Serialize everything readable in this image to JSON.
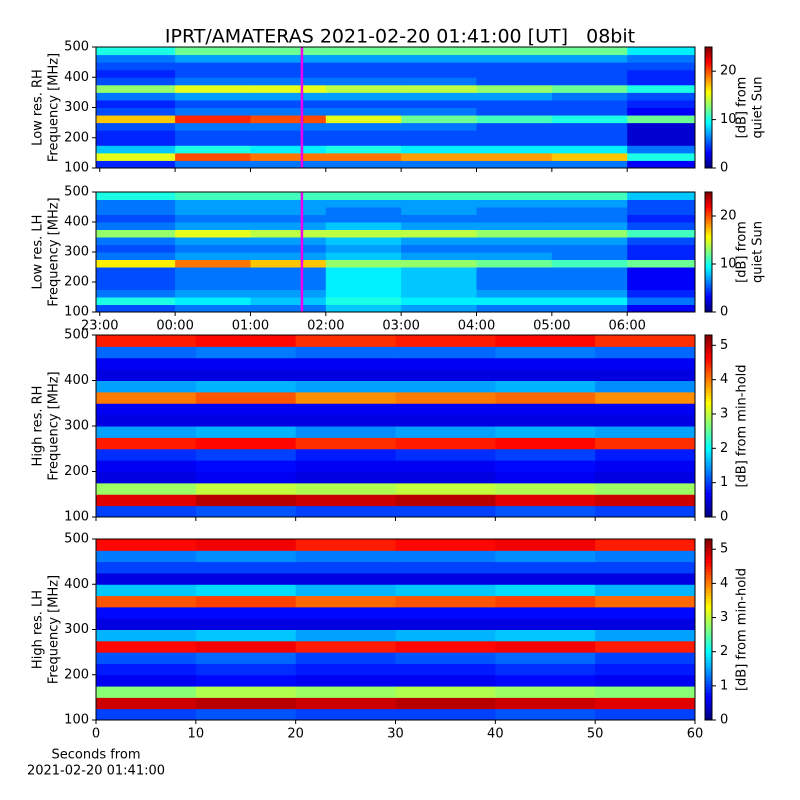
{
  "chart_data": [
    {
      "type": "heatmap",
      "title": "IPRT/AMATERAS 2021-02-20 01:41:00 [UT]   08bit",
      "ylabel": [
        "Low res. RH",
        "Frequency [MHz]"
      ],
      "colorbar_label": [
        "[dB] from",
        "quiet Sun"
      ],
      "colormap": "jet",
      "xlim": [
        22.95,
        30.9
      ],
      "ylim": [
        100,
        500
      ],
      "yticks": [
        100,
        200,
        300,
        400,
        500
      ],
      "xticks": [
        23,
        24,
        25,
        26,
        27,
        28,
        29,
        30
      ],
      "clim": [
        0,
        25
      ],
      "cticks": [
        0,
        10,
        20
      ],
      "cursor": {
        "x": 25.683,
        "color": "#ee00ee"
      },
      "x_bins": [
        22.95,
        24,
        25,
        26,
        27,
        28,
        29,
        30,
        30.9
      ],
      "y_bins": [
        100,
        125,
        150,
        175,
        200,
        225,
        250,
        275,
        300,
        325,
        350,
        375,
        400,
        425,
        450,
        475,
        500
      ],
      "z": [
        [
          4,
          6,
          6,
          6,
          6,
          6,
          6,
          3
        ],
        [
          15,
          20,
          19,
          19,
          18,
          18,
          17,
          10
        ],
        [
          8,
          10,
          9,
          10,
          9,
          9,
          9,
          6
        ],
        [
          4,
          5,
          5,
          5,
          5,
          5,
          5,
          2
        ],
        [
          4,
          5,
          5,
          5,
          5,
          5,
          5,
          2
        ],
        [
          5,
          6,
          6,
          6,
          6,
          5,
          5,
          2
        ],
        [
          17,
          21,
          20,
          15,
          12,
          11,
          10,
          12
        ],
        [
          5,
          6,
          6,
          6,
          6,
          5,
          5,
          3
        ],
        [
          4,
          5,
          5,
          5,
          5,
          5,
          5,
          4
        ],
        [
          6,
          7,
          7,
          7,
          7,
          7,
          6,
          5
        ],
        [
          13,
          15,
          15,
          14,
          14,
          13,
          12,
          10
        ],
        [
          5,
          6,
          6,
          6,
          6,
          5,
          5,
          4
        ],
        [
          4,
          5,
          5,
          5,
          5,
          5,
          5,
          4
        ],
        [
          5,
          5,
          5,
          5,
          5,
          5,
          5,
          5
        ],
        [
          6,
          7,
          7,
          7,
          7,
          7,
          7,
          6
        ],
        [
          10,
          12,
          12,
          12,
          12,
          12,
          12,
          9
        ]
      ]
    },
    {
      "type": "heatmap",
      "ylabel": [
        "Low res. LH",
        "Frequency [MHz]"
      ],
      "colorbar_label": [
        "[dB] from",
        "quiet Sun"
      ],
      "colormap": "jet",
      "xlim": [
        22.95,
        30.9
      ],
      "ylim": [
        100,
        500
      ],
      "yticks": [
        100,
        200,
        300,
        400,
        500
      ],
      "xticks": [
        {
          "value": 23,
          "label": "23:00"
        },
        {
          "value": 24,
          "label": "00:00"
        },
        {
          "value": 25,
          "label": "01:00"
        },
        {
          "value": 26,
          "label": "02:00"
        },
        {
          "value": 27,
          "label": "03:00"
        },
        {
          "value": 28,
          "label": "04:00"
        },
        {
          "value": 29,
          "label": "05:00"
        },
        {
          "value": 30,
          "label": "06:00"
        }
      ],
      "clim": [
        0,
        25
      ],
      "cticks": [
        0,
        10,
        20
      ],
      "cursor": {
        "x": 25.683,
        "color": "#ee00ee"
      },
      "x_bins": [
        22.95,
        24,
        25,
        26,
        27,
        28,
        29,
        30,
        30.9
      ],
      "y_bins": [
        100,
        125,
        150,
        175,
        200,
        225,
        250,
        275,
        300,
        325,
        350,
        375,
        400,
        425,
        450,
        475,
        500
      ],
      "z": [
        [
          5,
          6,
          6,
          8,
          7,
          6,
          6,
          3
        ],
        [
          10,
          9,
          8,
          10,
          9,
          9,
          9,
          6
        ],
        [
          6,
          7,
          7,
          9,
          8,
          7,
          7,
          4
        ],
        [
          5,
          6,
          6,
          9,
          8,
          6,
          6,
          3
        ],
        [
          5,
          6,
          6,
          9,
          8,
          6,
          6,
          3
        ],
        [
          5,
          6,
          6,
          9,
          8,
          6,
          6,
          3
        ],
        [
          16,
          19,
          17,
          13,
          13,
          12,
          11,
          12
        ],
        [
          6,
          7,
          7,
          8,
          7,
          7,
          6,
          4
        ],
        [
          5,
          6,
          6,
          7,
          6,
          6,
          6,
          4
        ],
        [
          6,
          7,
          7,
          8,
          7,
          7,
          7,
          5
        ],
        [
          13,
          15,
          14,
          14,
          14,
          13,
          13,
          11
        ],
        [
          6,
          7,
          7,
          8,
          7,
          7,
          7,
          5
        ],
        [
          5,
          6,
          6,
          6,
          6,
          6,
          6,
          4
        ],
        [
          6,
          7,
          7,
          6,
          7,
          6,
          6,
          5
        ],
        [
          6,
          7,
          7,
          7,
          7,
          7,
          7,
          5
        ],
        [
          10,
          11,
          11,
          11,
          11,
          11,
          11,
          8
        ]
      ]
    },
    {
      "type": "heatmap",
      "ylabel": [
        "High res. RH",
        "Frequency [MHz]"
      ],
      "colorbar_label": [
        "[dB] from min-hold"
      ],
      "colormap": "jet",
      "xlim": [
        0,
        60
      ],
      "ylim": [
        100,
        500
      ],
      "yticks": [
        100,
        200,
        300,
        400,
        500
      ],
      "xticks": [
        0,
        10,
        20,
        30,
        40,
        50,
        60
      ],
      "clim": [
        0,
        5.3
      ],
      "cticks": [
        0,
        1,
        2,
        3,
        4,
        5
      ],
      "x_bins": [
        0,
        10,
        20,
        30,
        40,
        50,
        60
      ],
      "y_bins": [
        100,
        125,
        150,
        175,
        200,
        225,
        250,
        275,
        300,
        325,
        350,
        375,
        400,
        425,
        450,
        475,
        500
      ],
      "z": [
        [
          1,
          1.1,
          1,
          1,
          1.1,
          1
        ],
        [
          4.8,
          5,
          4.9,
          5,
          4.8,
          4.9
        ],
        [
          2.8,
          3,
          2.9,
          3,
          2.9,
          2.8
        ],
        [
          0.5,
          0.6,
          0.5,
          0.5,
          0.6,
          0.5
        ],
        [
          0.6,
          0.7,
          0.6,
          0.6,
          0.7,
          0.6
        ],
        [
          0.9,
          1,
          0.8,
          0.9,
          1,
          0.8
        ],
        [
          4.5,
          4.6,
          4.4,
          4.5,
          4.6,
          4.4
        ],
        [
          1.5,
          1.6,
          1.4,
          1.5,
          1.6,
          1.5
        ],
        [
          0.5,
          0.5,
          0.5,
          0.5,
          0.5,
          0.5
        ],
        [
          0.6,
          0.6,
          0.6,
          0.6,
          0.6,
          0.6
        ],
        [
          4,
          4.2,
          3.9,
          4,
          4.1,
          3.9
        ],
        [
          1.5,
          1.6,
          1.5,
          1.5,
          1.6,
          1.4
        ],
        [
          0.5,
          0.5,
          0.5,
          0.5,
          0.5,
          0.5
        ],
        [
          0.6,
          0.6,
          0.6,
          0.6,
          0.6,
          0.6
        ],
        [
          1.2,
          1.3,
          1.2,
          1.2,
          1.3,
          1.2
        ],
        [
          4.5,
          4.6,
          4.4,
          4.5,
          4.6,
          4.4
        ]
      ]
    },
    {
      "type": "heatmap",
      "ylabel": [
        "High res. LH",
        "Frequency [MHz]"
      ],
      "colorbar_label": [
        "[dB] from min-hold"
      ],
      "colormap": "jet",
      "xlabel": [
        "Seconds from",
        "2021-02-20 01:41:00"
      ],
      "xlim": [
        0,
        60
      ],
      "ylim": [
        100,
        500
      ],
      "yticks": [
        100,
        200,
        300,
        400,
        500
      ],
      "xticks": [
        0,
        10,
        20,
        30,
        40,
        50,
        60
      ],
      "clim": [
        0,
        5.3
      ],
      "cticks": [
        0,
        1,
        2,
        3,
        4,
        5
      ],
      "x_bins": [
        0,
        10,
        20,
        30,
        40,
        50,
        60
      ],
      "y_bins": [
        100,
        125,
        150,
        175,
        200,
        225,
        250,
        275,
        300,
        325,
        350,
        375,
        400,
        425,
        450,
        475,
        500
      ],
      "z": [
        [
          1,
          1.1,
          1,
          1,
          1.1,
          1
        ],
        [
          4.9,
          5,
          4.9,
          5,
          4.9,
          4.8
        ],
        [
          2.7,
          2.9,
          2.8,
          2.9,
          2.8,
          2.7
        ],
        [
          0.6,
          0.7,
          0.6,
          0.6,
          0.7,
          0.6
        ],
        [
          0.8,
          0.9,
          0.8,
          0.8,
          0.9,
          0.8
        ],
        [
          1.1,
          1.2,
          1,
          1.1,
          1.2,
          1
        ],
        [
          4.6,
          4.7,
          4.5,
          4.6,
          4.7,
          4.5
        ],
        [
          1.6,
          1.7,
          1.5,
          1.6,
          1.7,
          1.5
        ],
        [
          0.5,
          0.5,
          0.5,
          0.5,
          0.5,
          0.5
        ],
        [
          0.7,
          0.7,
          0.7,
          0.7,
          0.7,
          0.7
        ],
        [
          4.2,
          4.3,
          4.1,
          4.2,
          4.3,
          4.1
        ],
        [
          1.7,
          1.8,
          1.6,
          1.7,
          1.8,
          1.6
        ],
        [
          0.5,
          0.5,
          0.5,
          0.5,
          0.5,
          0.5
        ],
        [
          1,
          1,
          1,
          1,
          1,
          1
        ],
        [
          1.3,
          1.4,
          1.3,
          1.3,
          1.4,
          1.3
        ],
        [
          4.6,
          4.7,
          4.5,
          4.6,
          4.7,
          4.5
        ]
      ]
    }
  ]
}
